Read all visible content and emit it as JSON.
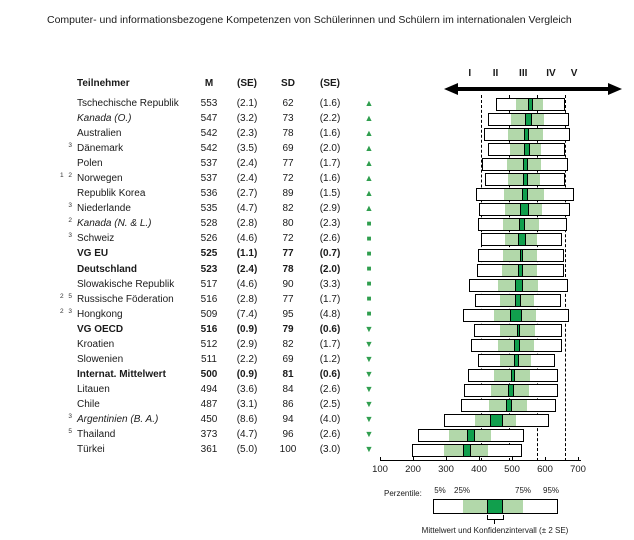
{
  "title": "Computer- und informationsbezogene Kompetenzen von Schülerinnen und Schülern im internationalen Vergleich",
  "table": {
    "headers": {
      "participant": "Teilnehmer",
      "mean": "M",
      "se": "(SE)",
      "sd": "SD",
      "sd_se": "(SE)"
    }
  },
  "colors": {
    "symbol_green": "#2f9e4e",
    "box_light_green": "#b2d8aa",
    "box_dark_green": "#119f4d"
  },
  "symbols": {
    "up": "▲",
    "square": "■",
    "down": "▼"
  },
  "chart_data": {
    "type": "table",
    "plot_style": "boxplot (5th/25th/75th/95th percentile band with mean confidence interval)",
    "axis_range": [
      100,
      700
    ],
    "axis_ticks": [
      100,
      200,
      300,
      400,
      500,
      600,
      700
    ],
    "levels": {
      "labels": [
        "I",
        "II",
        "III",
        "IV",
        "V"
      ],
      "boundaries": [
        407,
        492,
        576,
        661
      ],
      "label_scores": [
        372,
        450,
        534,
        618,
        688
      ]
    },
    "rows": [
      {
        "fn": "",
        "name": "Tschechische Republik",
        "italic": false,
        "bold": false,
        "m": 553,
        "se": 2.1,
        "sd": 62,
        "sd_se": 1.6,
        "symbol": "up"
      },
      {
        "fn": "",
        "name": "Kanada (O.)",
        "italic": true,
        "bold": false,
        "m": 547,
        "se": 3.2,
        "sd": 73,
        "sd_se": 2.2,
        "symbol": "up"
      },
      {
        "fn": "",
        "name": "Australien",
        "italic": false,
        "bold": false,
        "m": 542,
        "se": 2.3,
        "sd": 78,
        "sd_se": 1.6,
        "symbol": "up"
      },
      {
        "fn": "3",
        "name": "Dänemark",
        "italic": false,
        "bold": false,
        "m": 542,
        "se": 3.5,
        "sd": 69,
        "sd_se": 2.0,
        "symbol": "up"
      },
      {
        "fn": "",
        "name": "Polen",
        "italic": false,
        "bold": false,
        "m": 537,
        "se": 2.4,
        "sd": 77,
        "sd_se": 1.7,
        "symbol": "up"
      },
      {
        "fn": "1 2",
        "name": "Norwegen",
        "italic": false,
        "bold": false,
        "m": 537,
        "se": 2.4,
        "sd": 72,
        "sd_se": 1.6,
        "symbol": "up"
      },
      {
        "fn": "",
        "name": "Republik Korea",
        "italic": false,
        "bold": false,
        "m": 536,
        "se": 2.7,
        "sd": 89,
        "sd_se": 1.5,
        "symbol": "up"
      },
      {
        "fn": "3",
        "name": "Niederlande",
        "italic": false,
        "bold": false,
        "m": 535,
        "se": 4.7,
        "sd": 82,
        "sd_se": 2.9,
        "symbol": "up"
      },
      {
        "fn": "2",
        "name": "Kanada (N. & L.)",
        "italic": true,
        "bold": false,
        "m": 528,
        "se": 2.8,
        "sd": 80,
        "sd_se": 2.3,
        "symbol": "square"
      },
      {
        "fn": "3",
        "name": "Schweiz",
        "italic": false,
        "bold": false,
        "m": 526,
        "se": 4.6,
        "sd": 72,
        "sd_se": 2.6,
        "symbol": "square"
      },
      {
        "fn": "",
        "name": "VG EU",
        "italic": false,
        "bold": true,
        "m": 525,
        "se": 1.1,
        "sd": 77,
        "sd_se": 0.7,
        "symbol": "square"
      },
      {
        "fn": "",
        "name": "Deutschland",
        "italic": false,
        "bold": true,
        "m": 523,
        "se": 2.4,
        "sd": 78,
        "sd_se": 2.0,
        "symbol": "square"
      },
      {
        "fn": "",
        "name": "Slowakische Republik",
        "italic": false,
        "bold": false,
        "m": 517,
        "se": 4.6,
        "sd": 90,
        "sd_se": 3.3,
        "symbol": "square"
      },
      {
        "fn": "2 5",
        "name": "Russische Föderation",
        "italic": false,
        "bold": false,
        "m": 516,
        "se": 2.8,
        "sd": 77,
        "sd_se": 1.7,
        "symbol": "square"
      },
      {
        "fn": "2 3",
        "name": "Hongkong",
        "italic": false,
        "bold": false,
        "m": 509,
        "se": 7.4,
        "sd": 95,
        "sd_se": 4.8,
        "symbol": "square"
      },
      {
        "fn": "",
        "name": "VG OECD",
        "italic": false,
        "bold": true,
        "m": 516,
        "se": 0.9,
        "sd": 79,
        "sd_se": 0.6,
        "symbol": "down"
      },
      {
        "fn": "",
        "name": "Kroatien",
        "italic": false,
        "bold": false,
        "m": 512,
        "se": 2.9,
        "sd": 82,
        "sd_se": 1.7,
        "symbol": "down"
      },
      {
        "fn": "",
        "name": "Slowenien",
        "italic": false,
        "bold": false,
        "m": 511,
        "se": 2.2,
        "sd": 69,
        "sd_se": 1.2,
        "symbol": "down"
      },
      {
        "fn": "",
        "name": "Internat. Mittelwert",
        "italic": false,
        "bold": true,
        "m": 500,
        "se": 0.9,
        "sd": 81,
        "sd_se": 0.6,
        "symbol": "down"
      },
      {
        "fn": "",
        "name": "Litauen",
        "italic": false,
        "bold": false,
        "m": 494,
        "se": 3.6,
        "sd": 84,
        "sd_se": 2.6,
        "symbol": "down"
      },
      {
        "fn": "",
        "name": "Chile",
        "italic": false,
        "bold": false,
        "m": 487,
        "se": 3.1,
        "sd": 86,
        "sd_se": 2.5,
        "symbol": "down"
      },
      {
        "fn": "3",
        "name": "Argentinien (B. A.)",
        "italic": true,
        "bold": false,
        "m": 450,
        "se": 8.6,
        "sd": 94,
        "sd_se": 4.0,
        "symbol": "down"
      },
      {
        "fn": "5",
        "name": "Thailand",
        "italic": false,
        "bold": false,
        "m": 373,
        "se": 4.7,
        "sd": 96,
        "sd_se": 2.6,
        "symbol": "down"
      },
      {
        "fn": "",
        "name": "Türkei",
        "italic": false,
        "bold": false,
        "m": 361,
        "se": 5.0,
        "sd": 100,
        "sd_se": 3.0,
        "symbol": "down"
      }
    ],
    "legend": {
      "label": "Perzentile:",
      "percentiles": [
        "5%",
        "25%",
        "75%",
        "95%"
      ],
      "caption": "Mittelwert und Konfidenzintervall (± 2 SE)"
    }
  }
}
